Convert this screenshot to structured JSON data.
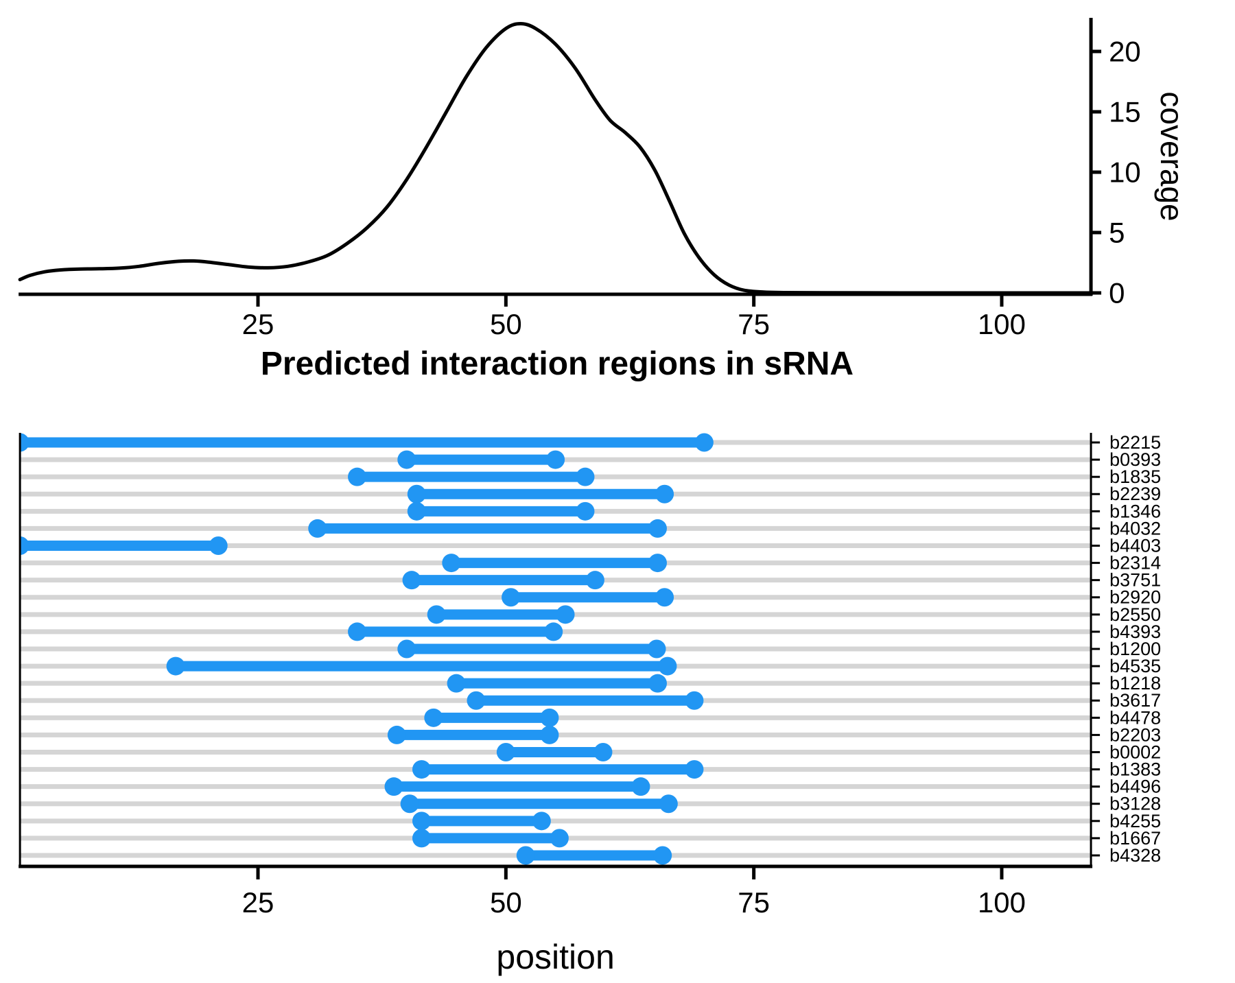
{
  "figure": {
    "title": "Predicted interaction regions in sRNA",
    "colors": {
      "segment_blue": "#2196F3",
      "curve_black": "#000000",
      "grid_gray": "#D5D5D5",
      "background": "#FFFFFF"
    }
  },
  "chart_data": [
    {
      "type": "area",
      "name": "srna-coverage-density",
      "ylabel": "coverage",
      "xlabel": "",
      "xlim": [
        1,
        109
      ],
      "ylim": [
        0,
        22.7
      ],
      "xticks": [
        25,
        50,
        75,
        100
      ],
      "yticks": [
        0,
        5,
        10,
        15,
        20
      ],
      "yaxis_side": "right",
      "grid": false,
      "points": [
        [
          1,
          1.1
        ],
        [
          2,
          1.45
        ],
        [
          3.5,
          1.75
        ],
        [
          5,
          1.9
        ],
        [
          7,
          1.98
        ],
        [
          9,
          2.0
        ],
        [
          11,
          2.05
        ],
        [
          13,
          2.2
        ],
        [
          15,
          2.45
        ],
        [
          17,
          2.62
        ],
        [
          18.5,
          2.65
        ],
        [
          20,
          2.55
        ],
        [
          22,
          2.35
        ],
        [
          24,
          2.15
        ],
        [
          26,
          2.08
        ],
        [
          28,
          2.2
        ],
        [
          30,
          2.55
        ],
        [
          32,
          3.1
        ],
        [
          34,
          4.1
        ],
        [
          36,
          5.4
        ],
        [
          38,
          7.1
        ],
        [
          40,
          9.4
        ],
        [
          42,
          12.1
        ],
        [
          44,
          15.0
        ],
        [
          46,
          17.9
        ],
        [
          48,
          20.3
        ],
        [
          50,
          21.9
        ],
        [
          51.5,
          22.3
        ],
        [
          53,
          21.9
        ],
        [
          55,
          20.6
        ],
        [
          57,
          18.6
        ],
        [
          59,
          16.0
        ],
        [
          60.5,
          14.3
        ],
        [
          62,
          13.3
        ],
        [
          63.5,
          12.1
        ],
        [
          65,
          10.2
        ],
        [
          66.5,
          7.6
        ],
        [
          68,
          4.9
        ],
        [
          69.5,
          2.9
        ],
        [
          71,
          1.5
        ],
        [
          72.5,
          0.65
        ],
        [
          74,
          0.22
        ],
        [
          76,
          0.07
        ],
        [
          78,
          0.03
        ],
        [
          82,
          0.01
        ],
        [
          90,
          0.0
        ],
        [
          100,
          0.0
        ],
        [
          109,
          0.0
        ]
      ]
    },
    {
      "type": "segment",
      "name": "predicted-interaction-regions",
      "title": "Predicted interaction regions in sRNA",
      "xlabel": "position",
      "xlim": [
        1,
        109
      ],
      "xticks": [
        25,
        50,
        75,
        100
      ],
      "rows": [
        {
          "label": "b2215",
          "start": 1,
          "end": 70,
          "clipped_start": true
        },
        {
          "label": "b0393",
          "start": 40,
          "end": 55,
          "clipped_start": false
        },
        {
          "label": "b1835",
          "start": 35,
          "end": 58,
          "clipped_start": false
        },
        {
          "label": "b2239",
          "start": 41,
          "end": 66,
          "clipped_start": false
        },
        {
          "label": "b1346",
          "start": 41,
          "end": 58,
          "clipped_start": false
        },
        {
          "label": "b4032",
          "start": 31,
          "end": 65.3,
          "clipped_start": false
        },
        {
          "label": "b4403",
          "start": 1,
          "end": 21,
          "clipped_start": true
        },
        {
          "label": "b2314",
          "start": 44.5,
          "end": 65.3,
          "clipped_start": false
        },
        {
          "label": "b3751",
          "start": 40.5,
          "end": 59,
          "clipped_start": false
        },
        {
          "label": "b2920",
          "start": 50.5,
          "end": 66,
          "clipped_start": false
        },
        {
          "label": "b2550",
          "start": 43,
          "end": 56,
          "clipped_start": false
        },
        {
          "label": "b4393",
          "start": 35,
          "end": 54.8,
          "clipped_start": false
        },
        {
          "label": "b1200",
          "start": 40,
          "end": 65.2,
          "clipped_start": false
        },
        {
          "label": "b4535",
          "start": 16.7,
          "end": 66.3,
          "clipped_start": false
        },
        {
          "label": "b1218",
          "start": 45,
          "end": 65.3,
          "clipped_start": false
        },
        {
          "label": "b3617",
          "start": 47,
          "end": 69,
          "clipped_start": false
        },
        {
          "label": "b4478",
          "start": 42.7,
          "end": 54.4,
          "clipped_start": false
        },
        {
          "label": "b2203",
          "start": 39,
          "end": 54.4,
          "clipped_start": false
        },
        {
          "label": "b0002",
          "start": 50,
          "end": 59.8,
          "clipped_start": false
        },
        {
          "label": "b1383",
          "start": 41.5,
          "end": 69,
          "clipped_start": false
        },
        {
          "label": "b4496",
          "start": 38.7,
          "end": 63.6,
          "clipped_start": false
        },
        {
          "label": "b3128",
          "start": 40.3,
          "end": 66.4,
          "clipped_start": false
        },
        {
          "label": "b4255",
          "start": 41.5,
          "end": 53.6,
          "clipped_start": false
        },
        {
          "label": "b1667",
          "start": 41.5,
          "end": 55.4,
          "clipped_start": false
        },
        {
          "label": "b4328",
          "start": 52,
          "end": 65.8,
          "clipped_start": false
        }
      ]
    }
  ]
}
